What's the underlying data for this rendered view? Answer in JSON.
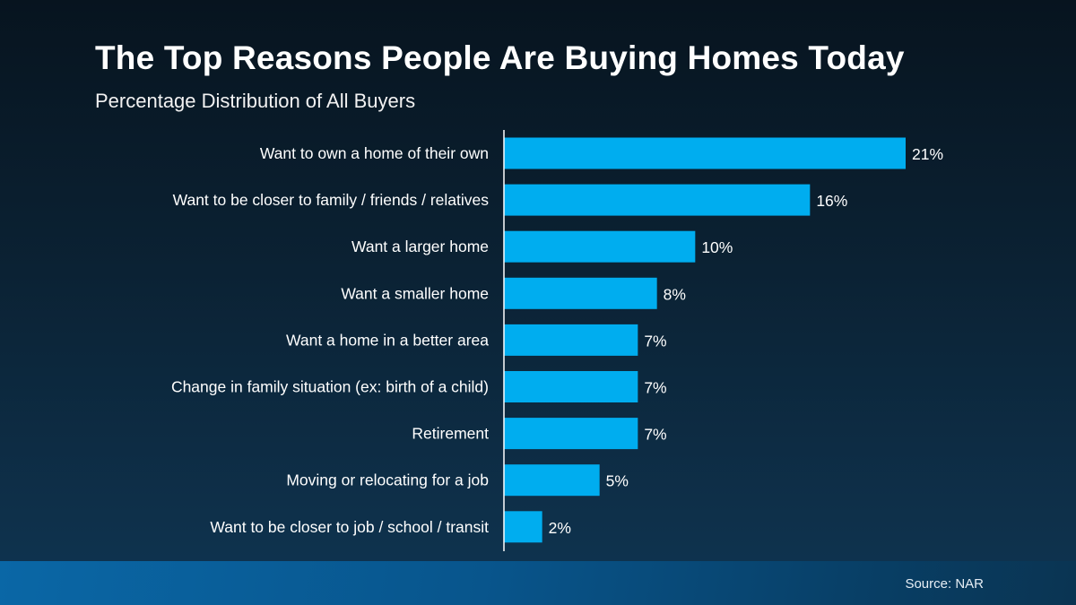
{
  "chart_data": {
    "type": "bar",
    "orientation": "horizontal",
    "title": "The Top Reasons People Are Buying Homes Today",
    "subtitle": "Percentage Distribution of All Buyers",
    "categories": [
      "Want to own a home of their own",
      "Want to be closer to family / friends / relatives",
      "Want a larger home",
      "Want a smaller home",
      "Want a home in a better area",
      "Change in family situation (ex: birth of a child)",
      "Retirement",
      "Moving or relocating for a job",
      "Want to be closer to job / school / transit"
    ],
    "values": [
      21,
      16,
      10,
      8,
      7,
      7,
      7,
      5,
      2
    ],
    "data_labels": [
      "21%",
      "16%",
      "10%",
      "8%",
      "7%",
      "7%",
      "7%",
      "5%",
      "2%"
    ],
    "unit": "%",
    "xlim": [
      0,
      21
    ],
    "grid": false,
    "legend": "none",
    "bar_color": "#00adef",
    "source": "Source: NAR"
  }
}
